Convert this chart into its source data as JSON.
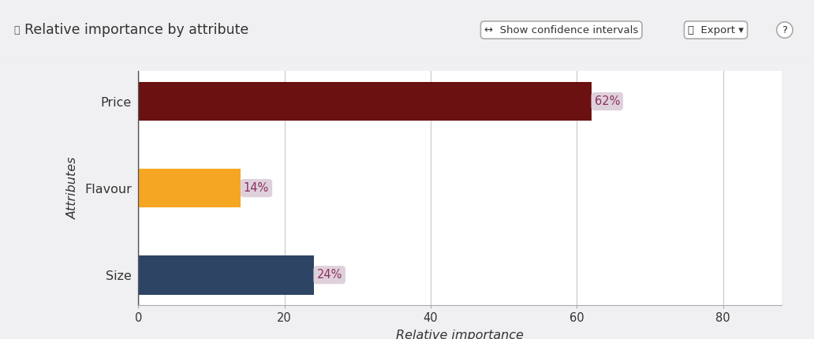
{
  "categories": [
    "Size",
    "Flavour",
    "Price"
  ],
  "values": [
    24,
    14,
    62
  ],
  "bar_colors": [
    "#2e4464",
    "#f5a623",
    "#6b1111"
  ],
  "bar_labels": [
    "24%",
    "14%",
    "62%"
  ],
  "xlabel": "Relative importance",
  "ylabel": "Attributes",
  "xlim": [
    0,
    88
  ],
  "xticks": [
    0,
    20,
    40,
    60,
    80
  ],
  "title": "Relative importance by attribute",
  "background_color": "#f0f0f2",
  "plot_bg_color": "#ffffff",
  "grid_color": "#cccccc",
  "label_bg_color": "#dcccd8",
  "label_text_color": "#8b3060",
  "header_bg": "#f0f0f2",
  "bar_height": 0.45
}
